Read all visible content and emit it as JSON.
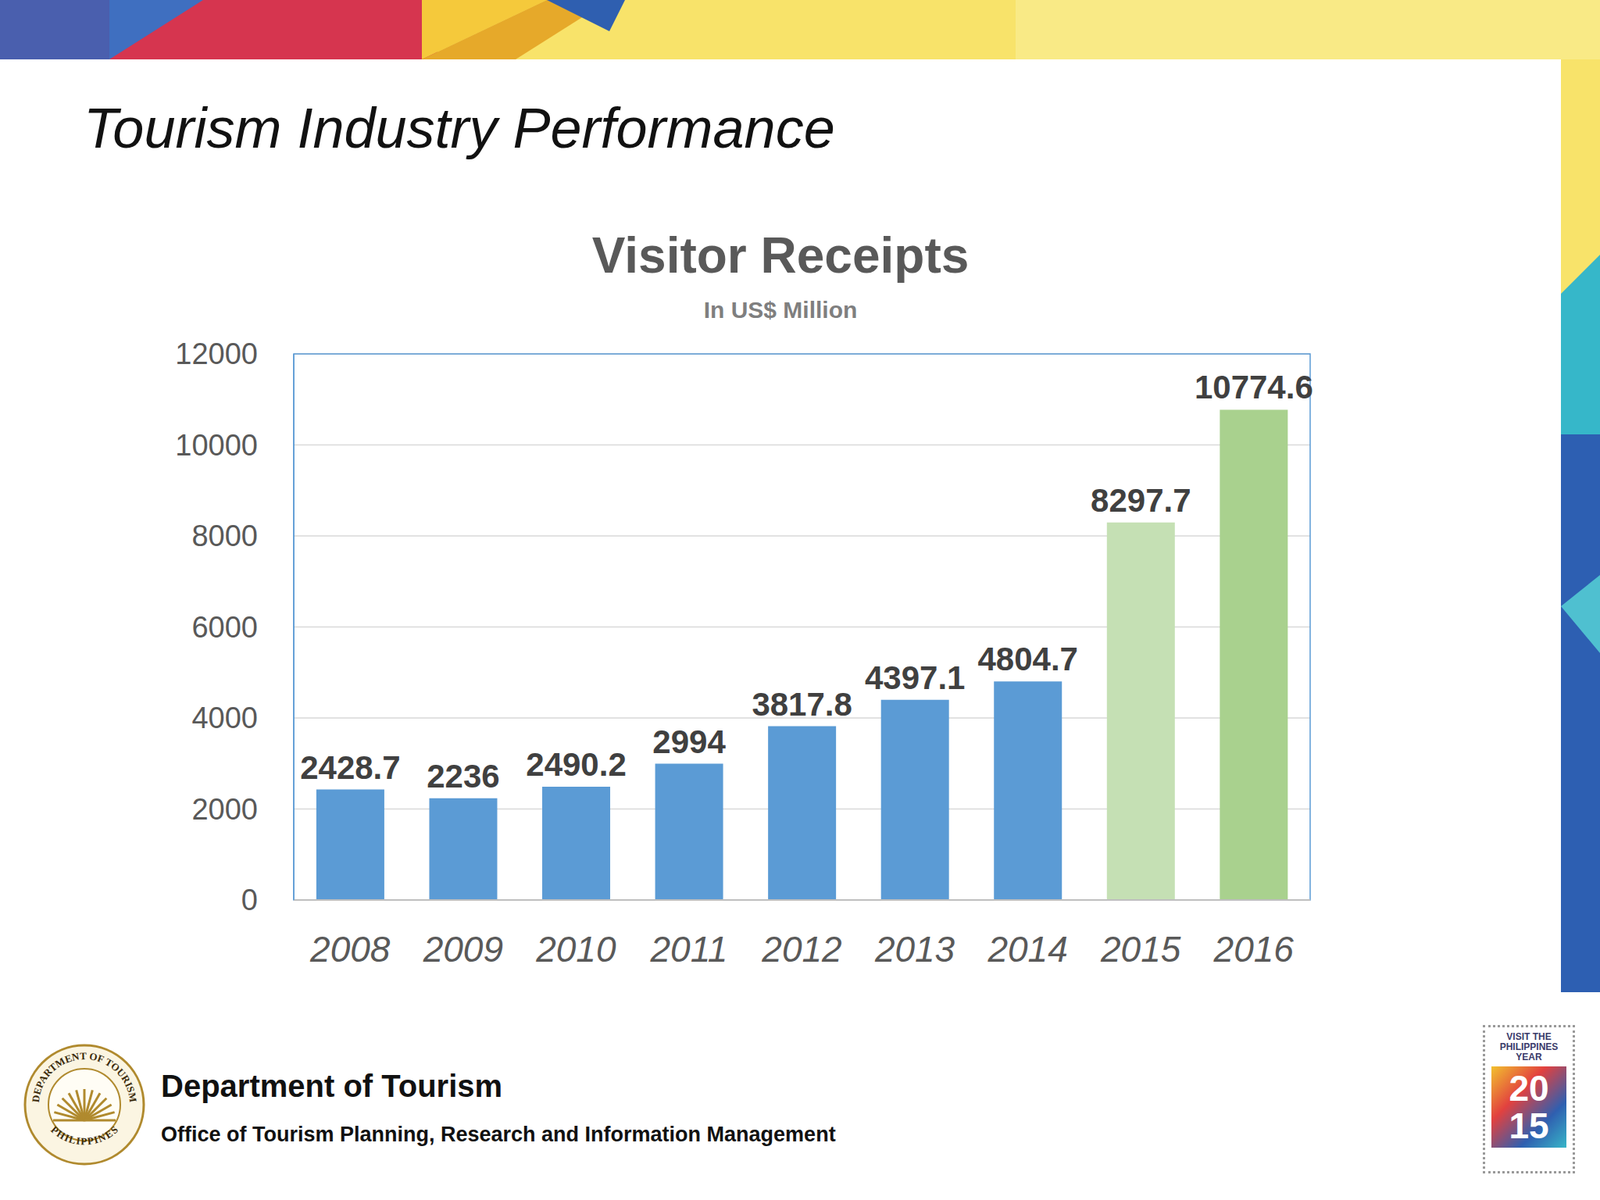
{
  "slide": {
    "title": "Tourism Industry Performance",
    "footer": {
      "department": "Department of Tourism",
      "office": "Office of Tourism Planning, Research and Information Management"
    },
    "logos": {
      "seal": [
        "DEPARTMENT OF TOURISM",
        "PHILIPPINES"
      ],
      "stamp": {
        "text": "VISIT THE PHILIPPINES YEAR",
        "year": "2015"
      }
    }
  },
  "chart_data": {
    "type": "bar",
    "title": "Visitor Receipts",
    "subtitle": "In US$ Million",
    "categories": [
      "2008",
      "2009",
      "2010",
      "2011",
      "2012",
      "2013",
      "2014",
      "2015",
      "2016"
    ],
    "values": [
      2428.7,
      2236,
      2490.2,
      2994,
      3817.8,
      4397.1,
      4804.7,
      8297.7,
      10774.6
    ],
    "colors": [
      "#5b9bd5",
      "#5b9bd5",
      "#5b9bd5",
      "#5b9bd5",
      "#5b9bd5",
      "#5b9bd5",
      "#5b9bd5",
      "#c5e0b4",
      "#a9d18e"
    ],
    "ylim": [
      0,
      12000
    ],
    "yticks": [
      0,
      2000,
      4000,
      6000,
      8000,
      10000,
      12000
    ],
    "grid": true,
    "data_labels": true
  }
}
